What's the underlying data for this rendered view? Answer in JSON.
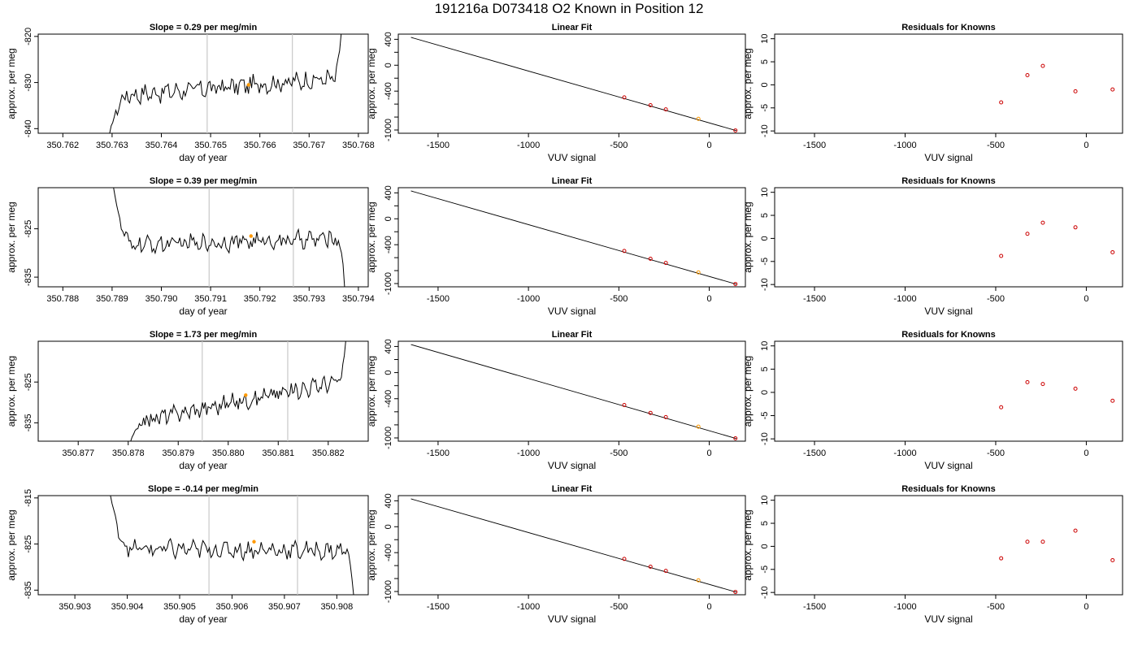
{
  "title": "191216a      D073418   O2 Known in Position  12",
  "colors": {
    "line": "#000000",
    "grid": "#c8c8c8",
    "marker_orange": "#ff9900",
    "marker_red": "#cc0000"
  },
  "rows": [
    {
      "timeseries": {
        "type": "line",
        "title": "Slope =  0.29  per meg/min",
        "xlabel": "day of year",
        "ylabel": "approx. per meg",
        "xlim": [
          350.7615,
          350.7682
        ],
        "ylim": [
          -841,
          -819.5
        ],
        "xticks": [
          "350.762",
          "350.763",
          "350.764",
          "350.765",
          "350.766",
          "350.767",
          "350.768"
        ],
        "yticks": [
          "-840",
          "-830",
          "-820"
        ],
        "vlines": [
          350.76493,
          350.76666
        ],
        "x_start": 350.76295,
        "x_end": 350.76765,
        "y_start": -841,
        "y_end": -819.5,
        "trend_start": -833,
        "trend_end": -829,
        "noise": 1.6,
        "marker": {
          "x": 350.76577,
          "y": -830.5
        }
      },
      "fit": {
        "type": "line",
        "title": "Linear Fit",
        "xlabel": "VUV signal",
        "ylabel": "approx. per meg",
        "xlim": [
          -1720,
          200
        ],
        "ylim": [
          -1050,
          480
        ],
        "xticks": [
          "-1500",
          "-1000",
          "-500",
          "0"
        ],
        "yticks": [
          "-1000",
          "-800",
          "-600",
          "-400",
          "-200",
          "0",
          "200",
          "400"
        ],
        "yticks_shown": [
          "-1000",
          "",
          "-400",
          "",
          "0",
          "",
          "400"
        ],
        "line": [
          [
            -1650,
            430
          ],
          [
            150,
            -1010
          ]
        ],
        "points": [
          [
            -470,
            -497
          ],
          [
            -325,
            -617
          ],
          [
            -240,
            -682
          ],
          [
            -60,
            -827
          ],
          [
            145,
            -1007
          ]
        ],
        "highlight_index": 3
      },
      "residuals": {
        "type": "scatter",
        "title": "Residuals for Knowns",
        "xlabel": "VUV signal",
        "ylabel": "approx. per meg",
        "xlim": [
          -1720,
          200
        ],
        "ylim": [
          -10.5,
          11
        ],
        "xticks": [
          "-1500",
          "-1000",
          "-500",
          "0"
        ],
        "yticks": [
          "-10",
          "-5",
          "0",
          "5",
          "10"
        ],
        "points": [
          [
            -470,
            -3.8
          ],
          [
            -325,
            2.1
          ],
          [
            -240,
            4.1
          ],
          [
            -60,
            -1.4
          ],
          [
            145,
            -1.0
          ]
        ]
      }
    },
    {
      "timeseries": {
        "type": "line",
        "title": "Slope =  0.39  per meg/min",
        "xlabel": "day of year",
        "ylabel": "approx. per meg",
        "xlim": [
          350.7875,
          350.7942
        ],
        "ylim": [
          -837,
          -816.5
        ],
        "xticks": [
          "350.788",
          "350.789",
          "350.790",
          "350.791",
          "350.792",
          "350.793",
          "350.794"
        ],
        "yticks": [
          "-835",
          "-825"
        ],
        "vlines": [
          350.79097,
          350.79268
        ],
        "x_start": 350.78903,
        "x_end": 350.79372,
        "y_start": -816.5,
        "y_end": -837,
        "trend_start": -828.5,
        "trend_end": -827,
        "noise": 1.4,
        "marker": {
          "x": 350.79182,
          "y": -826.5
        }
      },
      "fit": {
        "type": "line",
        "title": "Linear Fit",
        "xlabel": "VUV signal",
        "ylabel": "approx. per meg",
        "xlim": [
          -1720,
          200
        ],
        "ylim": [
          -1050,
          480
        ],
        "xticks": [
          "-1500",
          "-1000",
          "-500",
          "0"
        ],
        "yticks": [
          "-1000",
          "-800",
          "-600",
          "-400",
          "-200",
          "0",
          "200",
          "400"
        ],
        "yticks_shown": [
          "-1000",
          "",
          "-400",
          "",
          "0",
          "",
          "400"
        ],
        "line": [
          [
            -1650,
            430
          ],
          [
            150,
            -1010
          ]
        ],
        "points": [
          [
            -470,
            -497
          ],
          [
            -325,
            -617
          ],
          [
            -240,
            -682
          ],
          [
            -60,
            -827
          ],
          [
            145,
            -1007
          ]
        ],
        "highlight_index": 3
      },
      "residuals": {
        "type": "scatter",
        "title": "Residuals for Knowns",
        "xlabel": "VUV signal",
        "ylabel": "approx. per meg",
        "xlim": [
          -1720,
          200
        ],
        "ylim": [
          -10.5,
          11
        ],
        "xticks": [
          "-1500",
          "-1000",
          "-500",
          "0"
        ],
        "yticks": [
          "-10",
          "-5",
          "0",
          "5",
          "10"
        ],
        "points": [
          [
            -470,
            -3.8
          ],
          [
            -325,
            1.0
          ],
          [
            -240,
            3.4
          ],
          [
            -60,
            2.4
          ],
          [
            145,
            -3.0
          ]
        ]
      }
    },
    {
      "timeseries": {
        "type": "line",
        "title": "Slope =  1.73  per meg/min",
        "xlabel": "day of year",
        "ylabel": "approx. per meg",
        "xlim": [
          350.8762,
          350.8828
        ],
        "ylim": [
          -839.5,
          -815
        ],
        "xticks": [
          "350.877",
          "350.878",
          "350.879",
          "350.880",
          "350.881",
          "350.882"
        ],
        "yticks": [
          "-835",
          "-825"
        ],
        "vlines": [
          350.87948,
          350.88119
        ],
        "x_start": 350.87805,
        "x_end": 350.88235,
        "y_start": -839.5,
        "y_end": -815,
        "trend_start": -835,
        "trend_end": -824.5,
        "noise": 1.6,
        "marker": {
          "x": 350.88035,
          "y": -828.2
        }
      },
      "fit": {
        "type": "line",
        "title": "Linear Fit",
        "xlabel": "VUV signal",
        "ylabel": "approx. per meg",
        "xlim": [
          -1720,
          200
        ],
        "ylim": [
          -1050,
          480
        ],
        "xticks": [
          "-1500",
          "-1000",
          "-500",
          "0"
        ],
        "yticks": [
          "-1000",
          "-800",
          "-600",
          "-400",
          "-200",
          "0",
          "200",
          "400"
        ],
        "yticks_shown": [
          "-1000",
          "",
          "-400",
          "",
          "0",
          "",
          "400"
        ],
        "line": [
          [
            -1650,
            430
          ],
          [
            150,
            -1010
          ]
        ],
        "points": [
          [
            -470,
            -497
          ],
          [
            -325,
            -617
          ],
          [
            -240,
            -682
          ],
          [
            -60,
            -827
          ],
          [
            145,
            -1007
          ]
        ],
        "highlight_index": 3
      },
      "residuals": {
        "type": "scatter",
        "title": "Residuals for Knowns",
        "xlabel": "VUV signal",
        "ylabel": "approx. per meg",
        "xlim": [
          -1720,
          200
        ],
        "ylim": [
          -10.5,
          11
        ],
        "xticks": [
          "-1500",
          "-1000",
          "-500",
          "0"
        ],
        "yticks": [
          "-10",
          "-5",
          "0",
          "5",
          "10"
        ],
        "points": [
          [
            -470,
            -3.2
          ],
          [
            -325,
            2.2
          ],
          [
            -240,
            1.8
          ],
          [
            -60,
            0.8
          ],
          [
            145,
            -1.8
          ]
        ]
      }
    },
    {
      "timeseries": {
        "type": "line",
        "title": "Slope =  -0.14  per meg/min",
        "xlabel": "day of year",
        "ylabel": "approx. per meg",
        "xlim": [
          350.9023,
          350.9086
        ],
        "ylim": [
          -836,
          -814.5
        ],
        "xticks": [
          "350.903",
          "350.904",
          "350.905",
          "350.906",
          "350.907",
          "350.908"
        ],
        "yticks": [
          "-835",
          "-825",
          "-815"
        ],
        "vlines": [
          350.90556,
          350.90725
        ],
        "x_start": 350.90368,
        "x_end": 350.90832,
        "y_start": -814.5,
        "y_end": -836,
        "trend_start": -826,
        "trend_end": -826.5,
        "noise": 1.5,
        "marker": {
          "x": 350.90642,
          "y": -824.5
        }
      },
      "fit": {
        "type": "line",
        "title": "Linear Fit",
        "xlabel": "VUV signal",
        "ylabel": "approx. per meg",
        "xlim": [
          -1720,
          200
        ],
        "ylim": [
          -1050,
          480
        ],
        "xticks": [
          "-1500",
          "-1000",
          "-500",
          "0"
        ],
        "yticks": [
          "-1000",
          "-800",
          "-600",
          "-400",
          "-200",
          "0",
          "200",
          "400"
        ],
        "yticks_shown": [
          "-1000",
          "",
          "-400",
          "",
          "0",
          "",
          "400"
        ],
        "line": [
          [
            -1650,
            430
          ],
          [
            150,
            -1010
          ]
        ],
        "points": [
          [
            -470,
            -497
          ],
          [
            -325,
            -617
          ],
          [
            -240,
            -682
          ],
          [
            -60,
            -827
          ],
          [
            145,
            -1007
          ]
        ],
        "highlight_index": 3
      },
      "residuals": {
        "type": "scatter",
        "title": "Residuals for Knowns",
        "xlabel": "VUV signal",
        "ylabel": "approx. per meg",
        "xlim": [
          -1720,
          200
        ],
        "ylim": [
          -10.5,
          11
        ],
        "xticks": [
          "-1500",
          "-1000",
          "-500",
          "0"
        ],
        "yticks": [
          "-10",
          "-5",
          "0",
          "5",
          "10"
        ],
        "points": [
          [
            -470,
            -2.6
          ],
          [
            -325,
            1.0
          ],
          [
            -240,
            1.0
          ],
          [
            -60,
            3.4
          ],
          [
            145,
            -3.0
          ]
        ]
      }
    }
  ]
}
